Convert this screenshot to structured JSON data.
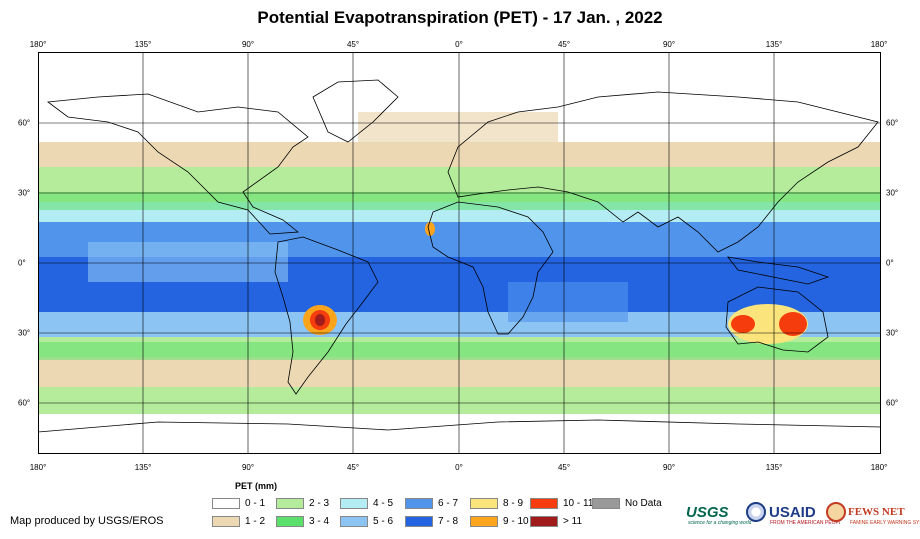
{
  "title": "Potential Evapotranspiration (PET) - 17 Jan. , 2022",
  "map": {
    "projection": "equirectangular",
    "lon_range": [
      -180,
      180
    ],
    "lat_range": [
      -75,
      85
    ],
    "lon_ticks": [
      "180°",
      "135°",
      "90°",
      "45°",
      "0°",
      "45°",
      "90°",
      "135°",
      "180°"
    ],
    "lat_ticks": [
      "60°",
      "30°",
      "0°",
      "30°",
      "60°"
    ],
    "grid": true,
    "ocean_color": "#ffffff",
    "graticule_color": "#000000"
  },
  "legend": {
    "title": "PET (mm)",
    "items": [
      {
        "label": "0 - 1",
        "color": "#ffffff"
      },
      {
        "label": "1 - 2",
        "color": "#ecd9b4"
      },
      {
        "label": "2 - 3",
        "color": "#b4ec9c"
      },
      {
        "label": "3 - 4",
        "color": "#5ce06c"
      },
      {
        "label": "4 - 5",
        "color": "#b4ecf4"
      },
      {
        "label": "5 - 6",
        "color": "#8cc4f4"
      },
      {
        "label": "6 - 7",
        "color": "#5094ec"
      },
      {
        "label": "7 - 8",
        "color": "#2464e0"
      },
      {
        "label": "8 - 9",
        "color": "#fce47c"
      },
      {
        "label": "9 - 10",
        "color": "#fca41c"
      },
      {
        "label": "10 - 11",
        "color": "#f43c0c"
      },
      {
        "label": "> 11",
        "color": "#a01c1c"
      },
      {
        "label": "No Data",
        "color": "#999999"
      }
    ]
  },
  "credit": "Map produced by USGS/EROS",
  "logos": {
    "usgs": "USGS",
    "usgs_tagline": "science for a changing world",
    "usaid": "USAID",
    "usaid_tagline": "FROM THE AMERICAN PEOPLE",
    "fews": "FEWS NET",
    "fews_tagline": "FAMINE EARLY WARNING SYSTEMS NETWORK"
  }
}
